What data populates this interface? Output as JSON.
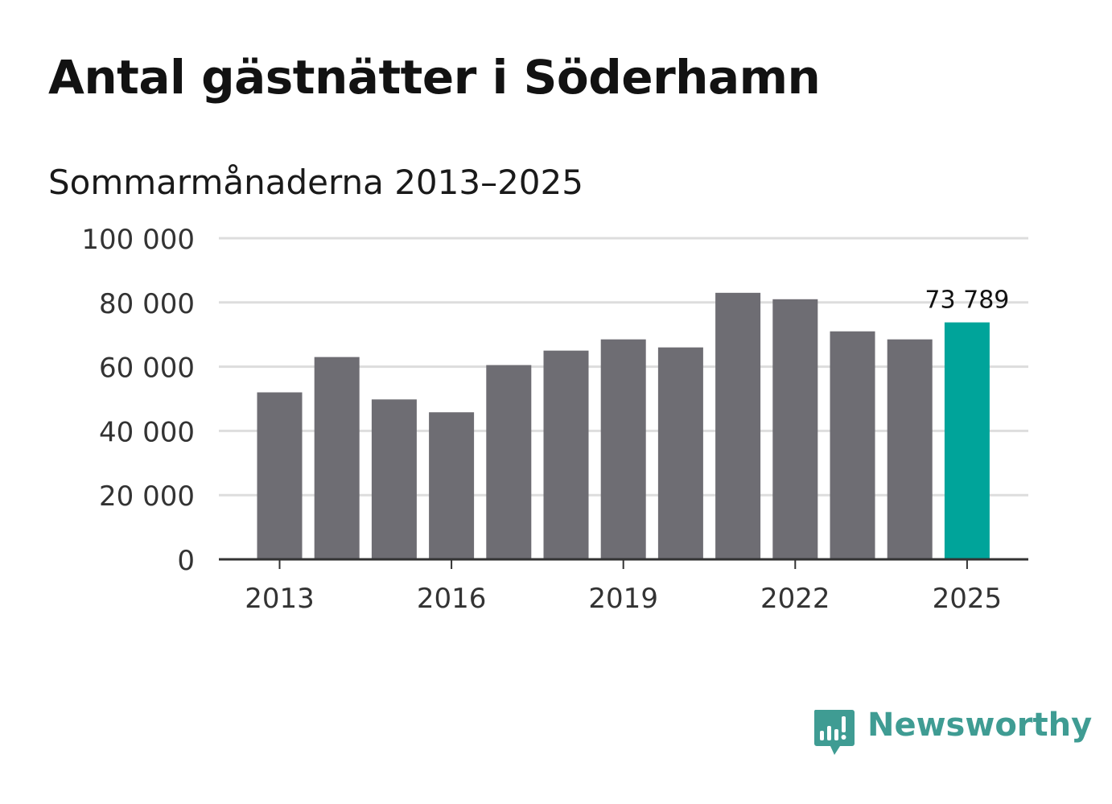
{
  "title": "Antal gästnätter i Söderhamn",
  "subtitle": "Sommarmånaderna 2013–2025",
  "brand": {
    "name": "Newsworthy",
    "color": "#3f9c93",
    "icon": "bar-chart-speech-bubble-icon"
  },
  "colors": {
    "bar": "#6e6d73",
    "highlight": "#00a49a",
    "grid": "#dddddd",
    "axis": "#333333"
  },
  "chart_data": {
    "type": "bar",
    "title": "Antal gästnätter i Söderhamn",
    "subtitle": "Sommarmånaderna 2013–2025",
    "x": [
      2013,
      2014,
      2015,
      2016,
      2017,
      2018,
      2019,
      2020,
      2021,
      2022,
      2023,
      2024,
      2025
    ],
    "values": [
      52000,
      63000,
      49800,
      45800,
      60500,
      65000,
      68500,
      66000,
      83000,
      81000,
      71000,
      68500,
      73789
    ],
    "xticks": [
      "2013",
      "2016",
      "2019",
      "2022",
      "2025"
    ],
    "yticks": [
      "0",
      "20 000",
      "40 000",
      "60 000",
      "80 000",
      "100 000"
    ],
    "ylim": [
      0,
      100000
    ],
    "highlight_index": 12,
    "highlight_label": "73 789",
    "grid": true,
    "legend": "none"
  }
}
